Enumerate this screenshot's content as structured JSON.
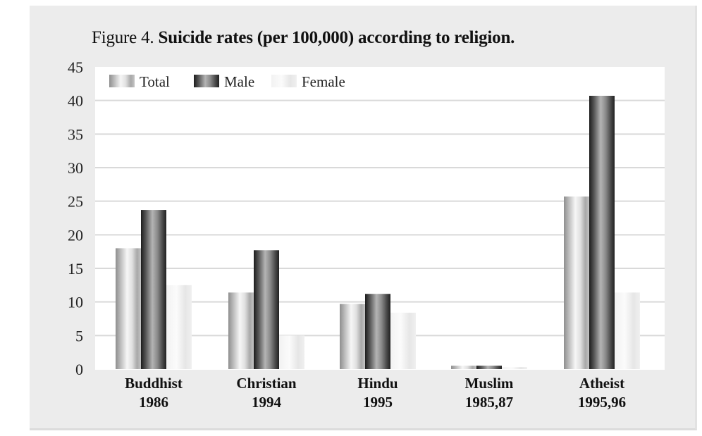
{
  "chart_data": {
    "type": "bar",
    "title_prefix": "Figure 4.",
    "title": "Suicide rates (per 100,000) according to religion.",
    "xlabel": "",
    "ylabel": "",
    "ylim": [
      0,
      45
    ],
    "yticks": [
      0,
      5,
      10,
      15,
      20,
      25,
      30,
      35,
      40,
      45
    ],
    "grid": true,
    "legend_position": "top-left",
    "categories": [
      {
        "name": "Buddhist",
        "year": "1986"
      },
      {
        "name": "Christian",
        "year": "1994"
      },
      {
        "name": "Hindu",
        "year": "1995"
      },
      {
        "name": "Muslim",
        "year": "1985,87"
      },
      {
        "name": "Atheist",
        "year": "1995,96"
      }
    ],
    "series": [
      {
        "name": "Total",
        "style": "medium-gray-gradient",
        "values": [
          18.0,
          11.4,
          9.7,
          0.5,
          25.7
        ]
      },
      {
        "name": "Male",
        "style": "dark-gray-gradient",
        "values": [
          23.7,
          17.7,
          11.2,
          0.5,
          40.7
        ]
      },
      {
        "name": "Female",
        "style": "light-gray-gradient",
        "values": [
          12.5,
          5.0,
          8.4,
          0.3,
          11.4
        ]
      }
    ]
  }
}
